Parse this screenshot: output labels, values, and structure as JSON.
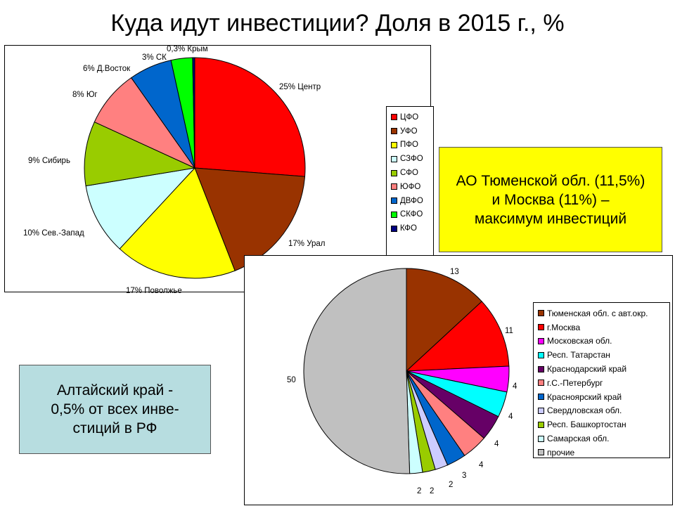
{
  "title": "Куда идут инвестиции? Доля в 2015 г., %",
  "callouts": {
    "yellow_lines": [
      "АО Тюменской обл. (11,5%)",
      "и Москва (11%) –",
      "максимум инвестиций"
    ],
    "blue_lines": [
      "Алтайский край -",
      "0,5% от всех инве-",
      "стиций в РФ"
    ]
  },
  "chart_data": [
    {
      "type": "pie",
      "legend_position": "right",
      "slices": [
        {
          "legend": "ЦФО",
          "label": "25% Центр",
          "value": 25,
          "color": "#ff0000"
        },
        {
          "legend": "УФО",
          "label": "17% Урал",
          "value": 17,
          "color": "#993300"
        },
        {
          "legend": "ПФО",
          "label": "17% Поволжье",
          "value": 17,
          "color": "#ffff00"
        },
        {
          "legend": "СЗФО",
          "label": "10% Сев.-Запад",
          "value": 10,
          "color": "#ccffff"
        },
        {
          "legend": "СФО",
          "label": "9% Сибирь",
          "value": 9,
          "color": "#99cc00"
        },
        {
          "legend": "ЮФО",
          "label": "8% Юг",
          "value": 8,
          "color": "#ff8080"
        },
        {
          "legend": "ДВФО",
          "label": "6% Д.Восток",
          "value": 6,
          "color": "#0066cc"
        },
        {
          "legend": "СКФО",
          "label": "3% СК",
          "value": 3,
          "color": "#00ff00"
        },
        {
          "legend": "КФО",
          "label": "0,3% Крым",
          "value": 0.3,
          "color": "#000080"
        }
      ]
    },
    {
      "type": "pie",
      "legend_position": "right",
      "slices": [
        {
          "legend": "Тюменская обл. с авт.окр.",
          "label": "13",
          "value": 13,
          "color": "#993300"
        },
        {
          "legend": "г.Москва",
          "label": "11",
          "value": 11,
          "color": "#ff0000"
        },
        {
          "legend": "Московская обл.",
          "label": "4",
          "value": 4,
          "color": "#ff00ff"
        },
        {
          "legend": "Респ. Татарстан",
          "label": "4",
          "value": 4,
          "color": "#00ffff"
        },
        {
          "legend": "Краснодарский край",
          "label": "4",
          "value": 4,
          "color": "#660066"
        },
        {
          "legend": "г.С.-Петербург",
          "label": "4",
          "value": 4,
          "color": "#ff8080"
        },
        {
          "legend": "Красноярский край",
          "label": "3",
          "value": 3,
          "color": "#0066cc"
        },
        {
          "legend": "Свердловская обл.",
          "label": "2",
          "value": 2,
          "color": "#ccccff"
        },
        {
          "legend": "Респ. Башкортостан",
          "label": "2",
          "value": 2,
          "color": "#99cc00"
        },
        {
          "legend": "Самарская обл.",
          "label": "2",
          "value": 2,
          "color": "#ccffff"
        },
        {
          "legend": "прочие",
          "label": "50",
          "value": 50,
          "color": "#c0c0c0"
        }
      ]
    }
  ]
}
